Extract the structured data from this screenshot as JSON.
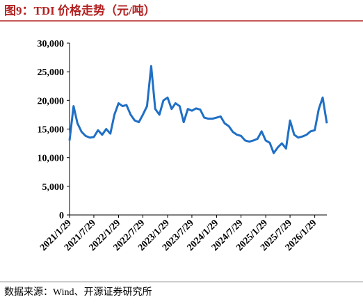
{
  "chart_data": {
    "type": "line",
    "title": "图9：TDI 价格走势（元/吨）",
    "source": "数据来源：Wind、开源证券研究所",
    "x": [
      "2021/1/29",
      "2021/2/28",
      "2021/3/29",
      "2021/4/29",
      "2021/5/29",
      "2021/6/29",
      "2021/7/29",
      "2021/8/29",
      "2021/9/29",
      "2021/10/29",
      "2021/11/29",
      "2021/12/29",
      "2022/1/29",
      "2022/2/28",
      "2022/3/29",
      "2022/4/29",
      "2022/5/29",
      "2022/6/29",
      "2022/7/29",
      "2022/8/29",
      "2022/9/29",
      "2022/10/29",
      "2022/11/29",
      "2022/12/29",
      "2023/1/29",
      "2023/2/28",
      "2023/3/29",
      "2023/4/29",
      "2023/5/29",
      "2023/6/29",
      "2023/7/29",
      "2023/8/29",
      "2023/9/29",
      "2023/10/29",
      "2023/11/29",
      "2023/12/29",
      "2024/1/29",
      "2024/2/28",
      "2024/3/29",
      "2024/4/29",
      "2024/5/29",
      "2024/6/29",
      "2024/7/29",
      "2024/8/29",
      "2024/9/29",
      "2024/10/29",
      "2024/11/29",
      "2024/12/29",
      "2025/1/29",
      "2025/2/28",
      "2025/3/29",
      "2025/4/29",
      "2025/5/29",
      "2025/6/29",
      "2025/7/29",
      "2025/8/29",
      "2025/9/29",
      "2025/10/29",
      "2025/11/29",
      "2025/12/29",
      "2026/1/29",
      "2026/2/28",
      "2026/3/29",
      "2026/4/29"
    ],
    "series": [
      {
        "color": "#1f6fc5",
        "values": [
          13000,
          19000,
          16000,
          14500,
          13800,
          13500,
          13600,
          14800,
          14000,
          15000,
          14200,
          17500,
          19500,
          19000,
          19200,
          17500,
          16500,
          16200,
          17500,
          19000,
          26000,
          18500,
          17500,
          20000,
          20500,
          18500,
          19500,
          19000,
          16200,
          18500,
          18200,
          18600,
          18400,
          17000,
          16800,
          16800,
          17000,
          17200,
          16000,
          15500,
          14500,
          14000,
          13800,
          13000,
          12800,
          13000,
          13300,
          14600,
          13000,
          12600,
          10800,
          11800,
          12500,
          11600,
          16500,
          14000,
          13500,
          13700,
          14000,
          14600,
          14800,
          18500,
          20500,
          16000
        ]
      }
    ],
    "xlim": [
      "2021/1/29",
      "2026/4/29"
    ],
    "xticks": [
      "2021/1/29",
      "2021/7/29",
      "2022/1/29",
      "2022/7/29",
      "2023/1/29",
      "2023/7/29",
      "2024/1/29",
      "2024/7/29",
      "2025/1/29",
      "2025/7/29",
      "2026/1/29"
    ],
    "ylim": [
      0,
      30000
    ],
    "yticks": [
      0,
      {
        "value": 5000,
        "label": "5,000"
      },
      {
        "value": 10000,
        "label": "10,000"
      },
      {
        "value": 15000,
        "label": "15,000"
      },
      {
        "value": 20000,
        "label": "20,000"
      },
      {
        "value": 25000,
        "label": "25,000"
      },
      {
        "value": 30000,
        "label": "30,000"
      }
    ]
  }
}
